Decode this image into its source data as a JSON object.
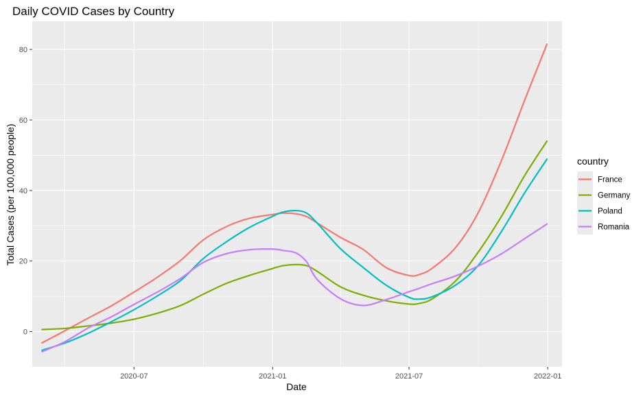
{
  "chart_data": {
    "type": "line",
    "title": "Daily COVID Cases by Country",
    "xlabel": "Date",
    "ylabel": "Total Cases (per 100,000 people)",
    "x_tick_labels": [
      "2020-07",
      "2021-01",
      "2021-07",
      "2022-01"
    ],
    "x_tick_values": [
      "2020-07-01",
      "2021-01-01",
      "2021-07-01",
      "2022-01-01"
    ],
    "y_ticks": [
      0,
      20,
      40,
      60,
      80
    ],
    "x_range": [
      "2020-02-17",
      "2022-01-20"
    ],
    "y_range": [
      -10,
      88
    ],
    "grid": true,
    "legend": {
      "title": "country",
      "position": "right"
    },
    "x": [
      "2020-03-01",
      "2020-04-01",
      "2020-05-01",
      "2020-06-01",
      "2020-07-01",
      "2020-08-01",
      "2020-09-01",
      "2020-10-01",
      "2020-11-01",
      "2020-12-01",
      "2021-01-01",
      "2021-01-15",
      "2021-02-01",
      "2021-02-15",
      "2021-03-01",
      "2021-04-01",
      "2021-05-01",
      "2021-06-01",
      "2021-07-01",
      "2021-07-15",
      "2021-08-01",
      "2021-09-01",
      "2021-10-01",
      "2021-11-01",
      "2021-12-01",
      "2021-12-31"
    ],
    "series": [
      {
        "name": "France",
        "color": "#F8766D",
        "values": [
          -3.2,
          0.3,
          3.8,
          7.3,
          11.2,
          15.4,
          20.2,
          26.0,
          29.8,
          32.1,
          33.2,
          33.6,
          33.4,
          32.6,
          30.8,
          26.7,
          23.3,
          18.1,
          15.9,
          16.2,
          18.0,
          23.9,
          33.8,
          48.7,
          65.4,
          81.5
        ]
      },
      {
        "name": "Germany",
        "color": "#7CAE00",
        "values": [
          0.6,
          0.9,
          1.6,
          2.4,
          3.5,
          5.2,
          7.4,
          10.6,
          13.7,
          15.9,
          17.9,
          18.7,
          19.0,
          18.7,
          17.1,
          12.7,
          10.3,
          8.7,
          7.8,
          8.0,
          9.3,
          14.4,
          22.6,
          32.8,
          44.1,
          54.0
        ]
      },
      {
        "name": "Poland",
        "color": "#00BFC4",
        "values": [
          -5.3,
          -3.2,
          -0.5,
          2.8,
          6.2,
          10.1,
          14.5,
          20.7,
          25.5,
          29.5,
          32.7,
          33.9,
          34.3,
          33.6,
          30.8,
          23.5,
          18.2,
          13.1,
          9.7,
          9.2,
          9.9,
          13.2,
          18.8,
          28.5,
          39.2,
          48.9
        ]
      },
      {
        "name": "Romania",
        "color": "#C77CFF",
        "values": [
          -5.7,
          -2.8,
          1.0,
          4.2,
          7.7,
          11.2,
          15.1,
          19.6,
          22.1,
          23.2,
          23.4,
          23.0,
          22.3,
          19.8,
          14.8,
          9.3,
          7.4,
          9.1,
          11.3,
          12.3,
          13.6,
          15.8,
          18.6,
          22.1,
          26.3,
          30.5
        ]
      }
    ]
  }
}
